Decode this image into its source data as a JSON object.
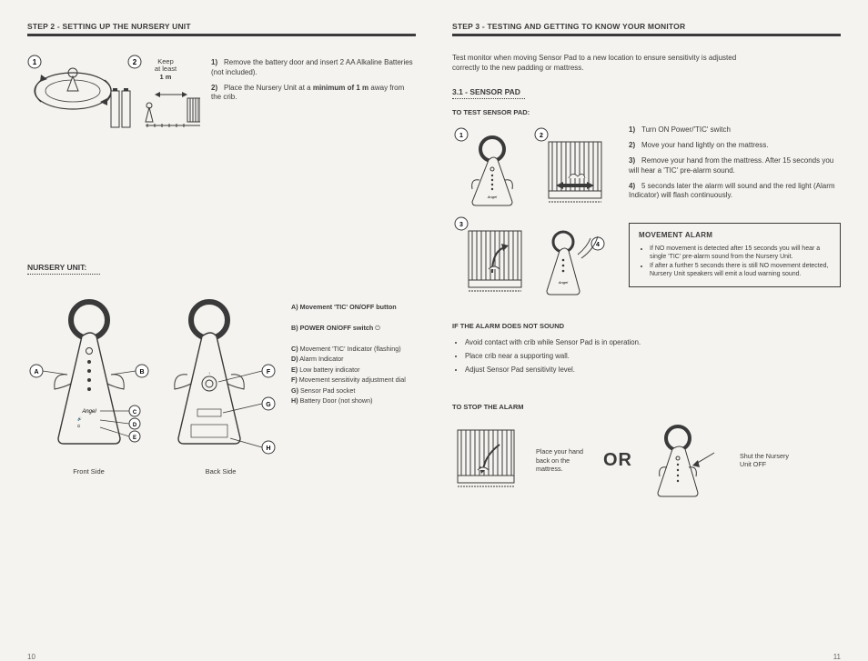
{
  "left": {
    "step_header": "STEP 2 - SETTING UP THE NURSERY UNIT",
    "keep_label": "Keep\nat least",
    "keep_dist": "1 m",
    "setup_instructions": [
      {
        "n": "1)",
        "text": "Remove the battery door and insert 2 AA Alkaline Batteries (not included)."
      },
      {
        "n": "2)",
        "html": "Place the Nursery Unit at a <b>minimum of 1 m</b> away from the crib."
      }
    ],
    "nursery_unit_label": "NURSERY UNIT:",
    "legend": [
      {
        "k": "A)",
        "html": "<b>Movement 'TIC' ON/OFF button</b>"
      },
      {
        "k": "B)",
        "html": "<b>POWER ON/OFF switch</b> ⏻"
      },
      {
        "k": "C)",
        "text": "Movement 'TIC' Indicator (flashing)"
      },
      {
        "k": "D)",
        "text": "Alarm Indicator"
      },
      {
        "k": "E)",
        "text": "Low battery indicator"
      },
      {
        "k": "F)",
        "text": "Movement sensitivity adjustment dial"
      },
      {
        "k": "G)",
        "text": "Sensor Pad socket"
      },
      {
        "k": "H)",
        "text": "Battery Door (not shown)"
      }
    ],
    "front_label": "Front Side",
    "back_label": "Back Side",
    "page": "10"
  },
  "right": {
    "step_header": "STEP 3 - TESTING AND GETTING TO KNOW YOUR MONITOR",
    "intro": "Test monitor when moving Sensor Pad to a new location to ensure sensitivity is adjusted correctly to the new padding or mattress.",
    "section31": "3.1 - SENSOR PAD",
    "to_test_label": "TO TEST SENSOR PAD:",
    "test_instructions": [
      {
        "n": "1)",
        "text": "Turn ON Power/'TIC' switch"
      },
      {
        "n": "2)",
        "text": "Move your hand lightly on the mattress."
      },
      {
        "n": "3)",
        "text": "Remove your hand from the mattress. After 15 seconds you will hear a 'TIC' pre-alarm sound."
      },
      {
        "n": "4)",
        "text": "5 seconds later the alarm will sound and the red light (Alarm Indicator) will flash continuously."
      }
    ],
    "alarm_box_title": "MOVEMENT ALARM",
    "alarm_box_items": [
      "If NO movement is detected after 15 seconds you will hear a single 'TIC' pre-alarm sound from the Nursery Unit.",
      "If after a further 5 seconds there is still NO movement detected, Nursery Unit speakers will emit a loud warning sound."
    ],
    "if_no_sound_label": "IF THE ALARM DOES NOT SOUND",
    "if_no_sound_items": [
      "Avoid contact with crib while Sensor Pad is in operation.",
      "Place crib near a supporting wall.",
      "Adjust Sensor Pad sensitivity level."
    ],
    "to_stop_label": "TO STOP THE ALARM",
    "stop_caption1": "Place your hand back on the mattress.",
    "or": "OR",
    "stop_caption2": "Shut the Nursery Unit OFF",
    "page": "11"
  },
  "colors": {
    "ink": "#3a3a3a",
    "bg": "#f5f3ef"
  }
}
